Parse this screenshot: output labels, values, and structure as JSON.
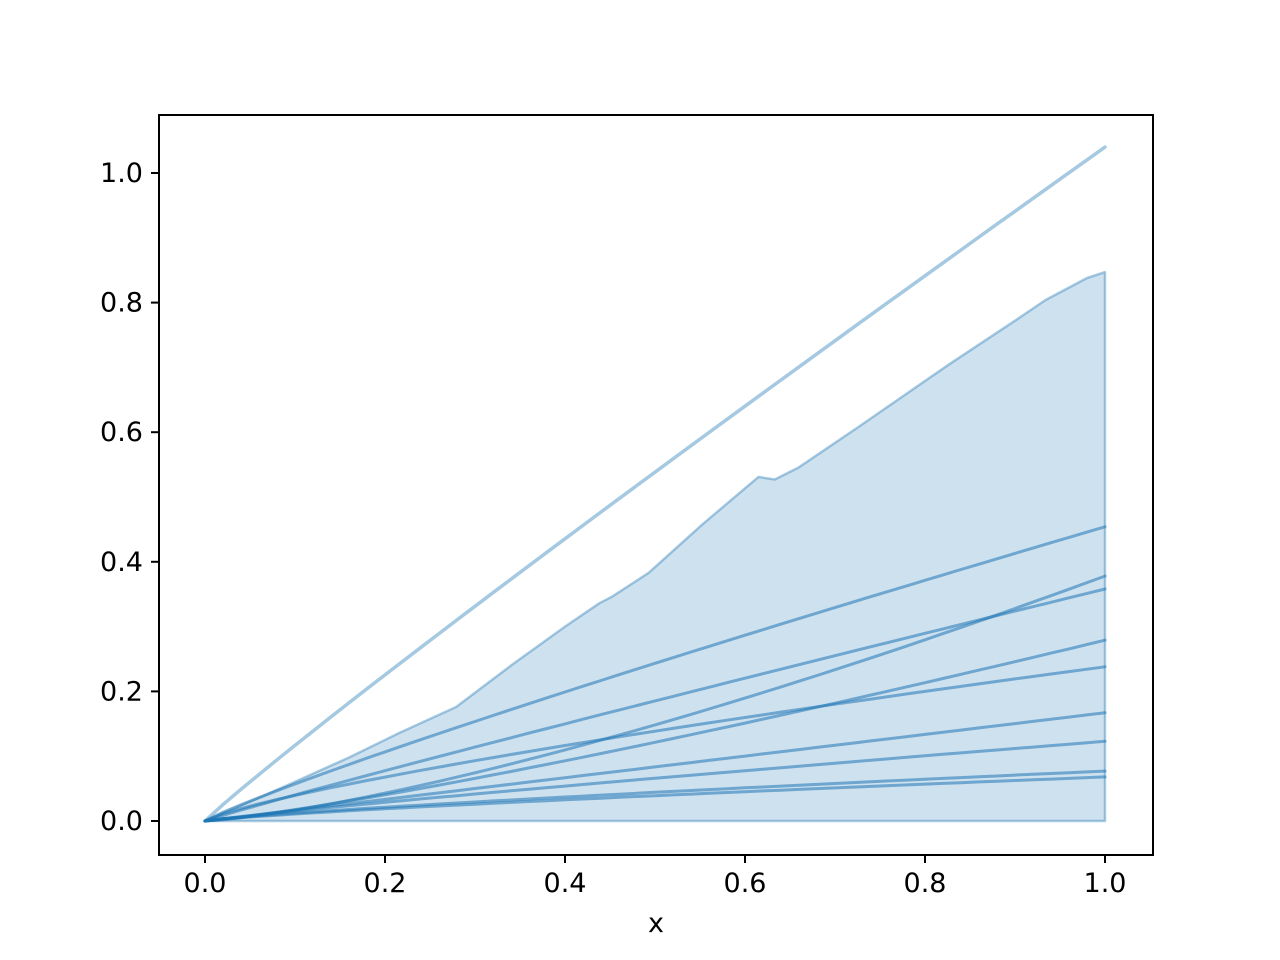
{
  "figure": {
    "background": "#ffffff"
  },
  "chart_data": {
    "type": "line",
    "title": "",
    "xlabel": "x",
    "ylabel": "",
    "grid": false,
    "legend": false,
    "xlim": [
      -0.051,
      1.053
    ],
    "ylim": [
      -0.052,
      1.089
    ],
    "x_tick_values": [
      0.0,
      0.2,
      0.4,
      0.6,
      0.8,
      1.0
    ],
    "x_tick_labels": [
      "0.0",
      "0.2",
      "0.4",
      "0.6",
      "0.8",
      "1.0"
    ],
    "y_tick_values": [
      0.0,
      0.2,
      0.4,
      0.6,
      0.8,
      1.0
    ],
    "y_tick_labels": [
      "0.0",
      "0.2",
      "0.4",
      "0.6",
      "0.8",
      "1.0"
    ],
    "base_color": "#1f77b4",
    "spine_color": "#000000",
    "band": {
      "description": "shaded envelope region between y=0 and jagged upper boundary",
      "fill_opacity": 0.22,
      "edge_opacity": 0.38,
      "edge_width": 2.5,
      "lower_y": 0,
      "upper_points": [
        [
          0.0,
          0.0
        ],
        [
          0.08,
          0.048
        ],
        [
          0.16,
          0.098
        ],
        [
          0.216,
          0.136
        ],
        [
          0.279,
          0.176
        ],
        [
          0.34,
          0.24
        ],
        [
          0.4,
          0.3
        ],
        [
          0.438,
          0.336
        ],
        [
          0.452,
          0.346
        ],
        [
          0.493,
          0.383
        ],
        [
          0.552,
          0.457
        ],
        [
          0.615,
          0.531
        ],
        [
          0.633,
          0.527
        ],
        [
          0.659,
          0.545
        ],
        [
          0.726,
          0.608
        ],
        [
          0.826,
          0.704
        ],
        [
          0.9,
          0.772
        ],
        [
          0.934,
          0.804
        ],
        [
          0.98,
          0.838
        ],
        [
          1.0,
          0.847
        ]
      ]
    },
    "upper_line": {
      "description": "smooth slightly-concave line from origin to (1, 1.04)",
      "shape": "power",
      "end": 1.04,
      "exponent": 0.95,
      "opacity": 0.4,
      "width": 3.5
    },
    "sample_lines": {
      "description": "sample curves y = end * x^exponent from origin; endpoints read at x=1",
      "opacity": 0.55,
      "width": 3,
      "curves": [
        {
          "end": 0.454,
          "exponent": 0.9
        },
        {
          "end": 0.378,
          "exponent": 1.35
        },
        {
          "end": 0.358,
          "exponent": 0.95
        },
        {
          "end": 0.279,
          "exponent": 1.2
        },
        {
          "end": 0.238,
          "exponent": 0.78
        },
        {
          "end": 0.167,
          "exponent": 1.0
        },
        {
          "end": 0.123,
          "exponent": 0.9
        },
        {
          "end": 0.077,
          "exponent": 0.8
        },
        {
          "end": 0.068,
          "exponent": 0.8
        }
      ]
    }
  }
}
